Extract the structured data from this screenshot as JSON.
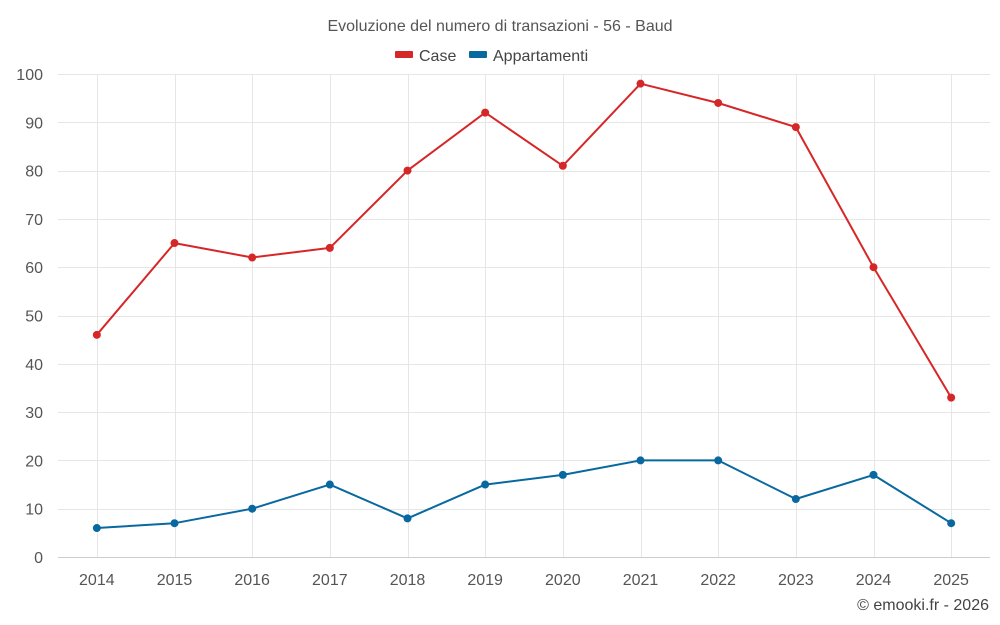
{
  "chart_data": {
    "type": "line",
    "title": "Evoluzione del numero di transazioni - 56 - Baud",
    "categories": [
      "2014",
      "2015",
      "2016",
      "2017",
      "2018",
      "2019",
      "2020",
      "2021",
      "2022",
      "2023",
      "2024",
      "2025"
    ],
    "series": [
      {
        "name": "Case",
        "color": "#d62728",
        "values": [
          46,
          65,
          62,
          64,
          80,
          92,
          81,
          98,
          94,
          89,
          60,
          33
        ]
      },
      {
        "name": "Appartamenti",
        "color": "#0868a0",
        "values": [
          6,
          7,
          10,
          15,
          8,
          15,
          17,
          20,
          20,
          12,
          17,
          7
        ]
      }
    ],
    "ylim": [
      0,
      100
    ],
    "yticks": [
      0,
      10,
      20,
      30,
      40,
      50,
      60,
      70,
      80,
      90,
      100
    ],
    "xlabel": "",
    "ylabel": "",
    "grid": true,
    "legend_position": "top-center"
  },
  "credit": "© emooki.fr - 2026"
}
